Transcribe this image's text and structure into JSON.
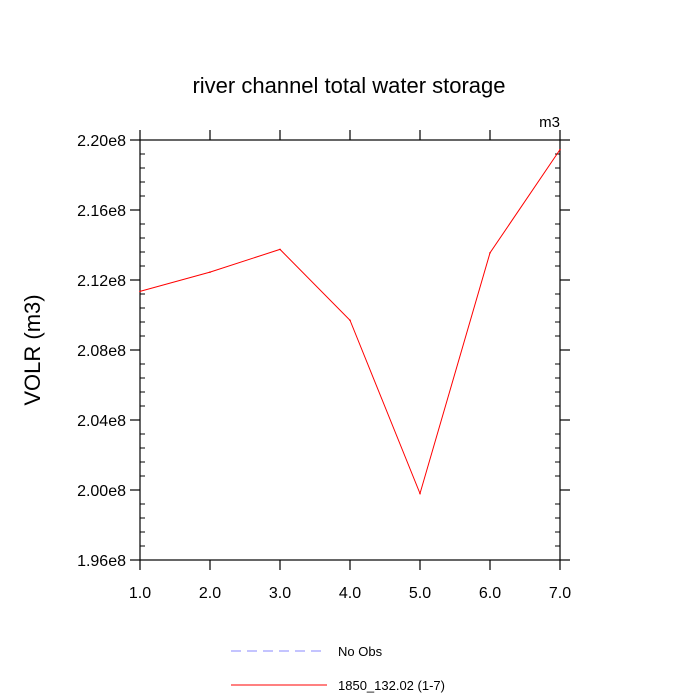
{
  "chart_data": {
    "type": "line",
    "title": "river channel total water storage",
    "units_label": "m3",
    "ylabel": "VOLR  (m3)",
    "xlabel": "",
    "xlim": [
      1.0,
      7.0
    ],
    "ylim": [
      196000000,
      220000000
    ],
    "x_ticks": [
      {
        "value": 1,
        "label": "1.0"
      },
      {
        "value": 2,
        "label": "2.0"
      },
      {
        "value": 3,
        "label": "3.0"
      },
      {
        "value": 4,
        "label": "4.0"
      },
      {
        "value": 5,
        "label": "5.0"
      },
      {
        "value": 6,
        "label": "6.0"
      },
      {
        "value": 7,
        "label": "7.0"
      }
    ],
    "y_ticks": [
      {
        "value": 196000000,
        "label": "1.96e8"
      },
      {
        "value": 200000000,
        "label": "2.00e8"
      },
      {
        "value": 204000000,
        "label": "2.04e8"
      },
      {
        "value": 208000000,
        "label": "2.08e8"
      },
      {
        "value": 212000000,
        "label": "2.12e8"
      },
      {
        "value": 216000000,
        "label": "2.16e8"
      },
      {
        "value": 220000000,
        "label": "2.20e8"
      }
    ],
    "series": [
      {
        "name": "1850_132.02 (1-7)",
        "color": "#ff0000",
        "dash": "solid",
        "x": [
          1,
          2,
          3,
          4,
          5,
          6,
          7
        ],
        "values": [
          211350000,
          212450000,
          213750000,
          209700000,
          199800000,
          213550000,
          219450000
        ]
      }
    ],
    "legend": {
      "placement": "bottom-center",
      "entries": [
        {
          "label": "No Obs",
          "color": "#8888ff",
          "dash": "dashed"
        },
        {
          "label": "1850_132.02 (1-7)",
          "color": "#ff0000",
          "dash": "solid"
        }
      ]
    },
    "grid": false
  }
}
